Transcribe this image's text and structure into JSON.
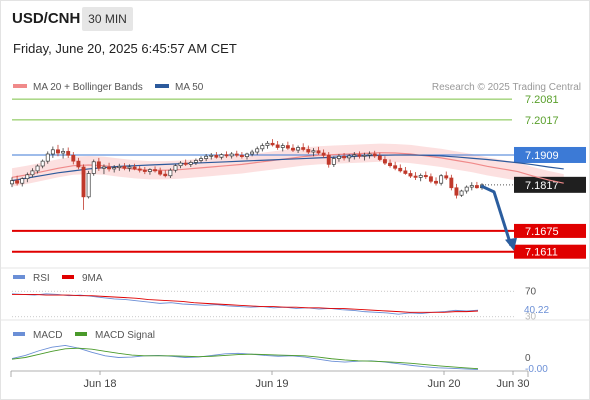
{
  "header": {
    "symbol": "USD/CNH",
    "timeframe": "30 MIN",
    "datetime": "Friday, June 20, 2025 6:45:57 AM CET"
  },
  "colors": {
    "up_candle": "#3a3a3a",
    "down_candle": "#c0392b",
    "ma20": "#f08a8a",
    "bollinger_fill": "#fbdada",
    "ma50": "#2c5a9c",
    "resistance": "#7bc043",
    "support": "#e00000",
    "pivot": "#3c7ad6",
    "current": "#1f1f1f",
    "rsi": "#6b8fd6",
    "rsi_ma": "#e00000",
    "macd": "#6b8fd6",
    "macd_signal": "#4a9a2a",
    "arrow": "#2b5d9e"
  },
  "chart_data": [
    {
      "type": "candlestick",
      "title": "USD/CNH",
      "legend": [
        "MA 20 + Bollinger Bands",
        "MA 50"
      ],
      "legend_position": "top-left",
      "attribution": "Research © 2025 Trading Central",
      "ylim": [
        7.157,
        7.214
      ],
      "x_ticks": [
        "Jun 18",
        "Jun 19",
        "Jun 20",
        "Jun 30"
      ],
      "levels": [
        {
          "value": 7.2081,
          "label": "7.2081",
          "kind": "resistance"
        },
        {
          "value": 7.2017,
          "label": "7.2017",
          "kind": "resistance"
        },
        {
          "value": 7.1909,
          "label": "7.1909",
          "kind": "pivot"
        },
        {
          "value": 7.1817,
          "label": "7.1817",
          "kind": "current"
        },
        {
          "value": 7.1675,
          "label": "7.1675",
          "kind": "support"
        },
        {
          "value": 7.1611,
          "label": "7.1611",
          "kind": "support"
        }
      ],
      "candles": [
        [
          7.182,
          7.184,
          7.181,
          7.183
        ],
        [
          7.183,
          7.1845,
          7.1815,
          7.1822
        ],
        [
          7.1822,
          7.184,
          7.1812,
          7.1836
        ],
        [
          7.1836,
          7.1855,
          7.1825,
          7.1848
        ],
        [
          7.1848,
          7.1868,
          7.184,
          7.186
        ],
        [
          7.186,
          7.188,
          7.1852,
          7.1875
        ],
        [
          7.1875,
          7.1895,
          7.1868,
          7.189
        ],
        [
          7.189,
          7.192,
          7.1882,
          7.1912
        ],
        [
          7.1912,
          7.1935,
          7.19,
          7.1925
        ],
        [
          7.1925,
          7.194,
          7.1905,
          7.1915
        ],
        [
          7.1915,
          7.193,
          7.1898,
          7.192
        ],
        [
          7.192,
          7.1932,
          7.19,
          7.1908
        ],
        [
          7.1908,
          7.1918,
          7.188,
          7.189
        ],
        [
          7.189,
          7.19,
          7.1865,
          7.1872
        ],
        [
          7.1872,
          7.188,
          7.174,
          7.178
        ],
        [
          7.178,
          7.186,
          7.1775,
          7.1852
        ],
        [
          7.1852,
          7.1895,
          7.1845,
          7.1888
        ],
        [
          7.1888,
          7.19,
          7.186,
          7.1868
        ],
        [
          7.1868,
          7.188,
          7.185,
          7.1872
        ],
        [
          7.1872,
          7.1885,
          7.1858,
          7.1866
        ],
        [
          7.1866,
          7.1878,
          7.1855,
          7.187
        ],
        [
          7.187,
          7.1882,
          7.186,
          7.1874
        ],
        [
          7.1874,
          7.1884,
          7.1862,
          7.1868
        ],
        [
          7.1868,
          7.188,
          7.1858,
          7.1872
        ],
        [
          7.1872,
          7.1882,
          7.1862,
          7.1866
        ],
        [
          7.1866,
          7.1875,
          7.1855,
          7.1862
        ],
        [
          7.1862,
          7.1872,
          7.185,
          7.1858
        ],
        [
          7.1858,
          7.1868,
          7.1848,
          7.1864
        ],
        [
          7.1864,
          7.1874,
          7.1855,
          7.186
        ],
        [
          7.186,
          7.187,
          7.1845,
          7.185
        ],
        [
          7.185,
          7.1862,
          7.184,
          7.1845
        ],
        [
          7.1845,
          7.1868,
          7.1838,
          7.1862
        ],
        [
          7.1862,
          7.188,
          7.1855,
          7.1876
        ],
        [
          7.1876,
          7.189,
          7.1868,
          7.1884
        ],
        [
          7.1884,
          7.1895,
          7.1875,
          7.188
        ],
        [
          7.188,
          7.1892,
          7.1872,
          7.1886
        ],
        [
          7.1886,
          7.1898,
          7.1878,
          7.1892
        ],
        [
          7.1892,
          7.1905,
          7.1885,
          7.1898
        ],
        [
          7.1898,
          7.1912,
          7.189,
          7.1905
        ],
        [
          7.1905,
          7.1915,
          7.1895,
          7.1908
        ],
        [
          7.1908,
          7.1918,
          7.1898,
          7.1902
        ],
        [
          7.1902,
          7.1914,
          7.1895,
          7.191
        ],
        [
          7.191,
          7.192,
          7.19,
          7.1906
        ],
        [
          7.1906,
          7.1918,
          7.1898,
          7.1912
        ],
        [
          7.1912,
          7.1922,
          7.1902,
          7.1908
        ],
        [
          7.1908,
          7.1918,
          7.1898,
          7.1904
        ],
        [
          7.1904,
          7.1916,
          7.1895,
          7.1912
        ],
        [
          7.1912,
          7.1925,
          7.1905,
          7.1918
        ],
        [
          7.1918,
          7.1935,
          7.191,
          7.1928
        ],
        [
          7.1928,
          7.1945,
          7.192,
          7.1938
        ],
        [
          7.1938,
          7.1952,
          7.1928,
          7.1945
        ],
        [
          7.1945,
          7.1958,
          7.1935,
          7.194
        ],
        [
          7.194,
          7.1952,
          7.1925,
          7.1932
        ],
        [
          7.1932,
          7.1945,
          7.192,
          7.1938
        ],
        [
          7.1938,
          7.195,
          7.1925,
          7.193
        ],
        [
          7.193,
          7.1942,
          7.1918,
          7.1924
        ],
        [
          7.1924,
          7.1938,
          7.1915,
          7.1932
        ],
        [
          7.1932,
          7.1945,
          7.192,
          7.1926
        ],
        [
          7.1926,
          7.1938,
          7.1912,
          7.1918
        ],
        [
          7.1918,
          7.193,
          7.1905,
          7.1922
        ],
        [
          7.1922,
          7.1934,
          7.191,
          7.1915
        ],
        [
          7.1915,
          7.1926,
          7.19,
          7.1908
        ],
        [
          7.1908,
          7.1918,
          7.187,
          7.188
        ],
        [
          7.188,
          7.1905,
          7.1872,
          7.1898
        ],
        [
          7.1898,
          7.1912,
          7.1888,
          7.1905
        ],
        [
          7.1905,
          7.1915,
          7.1892,
          7.19
        ],
        [
          7.19,
          7.1912,
          7.1888,
          7.1906
        ],
        [
          7.1906,
          7.1918,
          7.1895,
          7.191
        ],
        [
          7.191,
          7.192,
          7.1898,
          7.1905
        ],
        [
          7.1905,
          7.1916,
          7.1892,
          7.1908
        ],
        [
          7.1908,
          7.192,
          7.1898,
          7.1912
        ],
        [
          7.1912,
          7.1922,
          7.19,
          7.1906
        ],
        [
          7.1906,
          7.1916,
          7.189,
          7.1895
        ],
        [
          7.1895,
          7.1905,
          7.1878,
          7.1884
        ],
        [
          7.1884,
          7.1895,
          7.187,
          7.1876
        ],
        [
          7.1876,
          7.1888,
          7.1862,
          7.1868
        ],
        [
          7.1868,
          7.188,
          7.1855,
          7.186
        ],
        [
          7.186,
          7.1872,
          7.1848,
          7.1852
        ],
        [
          7.1852,
          7.1862,
          7.1838,
          7.1844
        ],
        [
          7.1844,
          7.1856,
          7.1832,
          7.184
        ],
        [
          7.184,
          7.1852,
          7.1828,
          7.1846
        ],
        [
          7.1846,
          7.1858,
          7.1835,
          7.1842
        ],
        [
          7.1842,
          7.1852,
          7.1822,
          7.1828
        ],
        [
          7.1828,
          7.184,
          7.1815,
          7.1822
        ],
        [
          7.1822,
          7.185,
          7.1815,
          7.1845
        ],
        [
          7.1845,
          7.1858,
          7.1832,
          7.1838
        ],
        [
          7.1838,
          7.1848,
          7.18,
          7.1808
        ],
        [
          7.1808,
          7.182,
          7.1775,
          7.1785
        ],
        [
          7.1785,
          7.1802,
          7.178,
          7.1798
        ],
        [
          7.1798,
          7.1815,
          7.179,
          7.181
        ],
        [
          7.181,
          7.1825,
          7.18,
          7.1815
        ],
        [
          7.1815,
          7.1826,
          7.1805,
          7.1808
        ],
        [
          7.1808,
          7.1822,
          7.1802,
          7.1817
        ]
      ],
      "ma20": [
        7.184,
        7.1848,
        7.1858,
        7.1868,
        7.1876,
        7.1878,
        7.1876,
        7.187,
        7.1865,
        7.1862,
        7.1862,
        7.1864,
        7.1868,
        7.1872,
        7.1876,
        7.188,
        7.1886,
        7.1892,
        7.1898,
        7.1904,
        7.1908,
        7.191,
        7.1912,
        7.1914,
        7.1916,
        7.1915,
        7.1912,
        7.1906,
        7.19,
        7.1892,
        7.1884,
        7.1874,
        7.1866,
        7.1858,
        7.1844,
        7.1832,
        7.1822
      ],
      "ma20_x": [
        0,
        3,
        6,
        9,
        12,
        15,
        18,
        21,
        24,
        27,
        30,
        33,
        36,
        39,
        42,
        45,
        48,
        51,
        54,
        57,
        60,
        63,
        66,
        69,
        72,
        75,
        78,
        81,
        84,
        87,
        90,
        93,
        96,
        99,
        102,
        105,
        108
      ],
      "ma50": [
        7.183,
        7.1838,
        7.1846,
        7.1854,
        7.186,
        7.1866,
        7.187,
        7.1874,
        7.1876,
        7.1878,
        7.188,
        7.1882,
        7.1884,
        7.1886,
        7.1888,
        7.189,
        7.1892,
        7.1894,
        7.1896,
        7.1898,
        7.19,
        7.1902,
        7.1904,
        7.1906,
        7.1908,
        7.1909,
        7.1909,
        7.1908,
        7.1906,
        7.1903,
        7.1899,
        7.1895,
        7.189,
        7.1885,
        7.1879,
        7.1872,
        7.1866
      ],
      "forecast_arrow": {
        "from": 7.1817,
        "to": 7.1611
      }
    },
    {
      "type": "line",
      "title": "RSI",
      "legend": [
        "RSI",
        "9MA"
      ],
      "legend_position": "top-left",
      "ylim": [
        28,
        72
      ],
      "tick_labels": [
        "70",
        "40.22",
        "30"
      ],
      "series": [
        {
          "name": "RSI",
          "values": [
            66,
            65,
            64,
            66,
            65,
            63,
            64,
            62,
            60,
            58,
            57,
            55,
            53,
            51,
            52,
            50,
            49,
            48,
            49,
            47,
            46,
            45,
            46,
            44,
            45,
            43,
            44,
            42,
            43,
            41,
            40,
            38,
            37,
            36,
            34,
            36,
            35,
            37,
            38,
            40,
            39,
            40.22
          ]
        },
        {
          "name": "9MA",
          "values": [
            65,
            65,
            65,
            64,
            64,
            64,
            63,
            63,
            62,
            61,
            60,
            59,
            57,
            56,
            55,
            54,
            52,
            51,
            50,
            49,
            48,
            47,
            46,
            46,
            45,
            45,
            44,
            44,
            43,
            43,
            42,
            41,
            40,
            39,
            38,
            37,
            37,
            37,
            37,
            38,
            38,
            39
          ]
        }
      ]
    },
    {
      "type": "line",
      "title": "MACD",
      "legend": [
        "MACD",
        "MACD Signal"
      ],
      "legend_position": "top-left",
      "ylim": [
        -0.006,
        0.008
      ],
      "tick_labels": [
        "0",
        "-0.00"
      ],
      "series": [
        {
          "name": "MACD",
          "values": [
            0.0005,
            0.002,
            0.0042,
            0.006,
            0.0068,
            0.0055,
            0.0035,
            0.0018,
            0.001,
            0.0012,
            0.0018,
            0.002,
            0.0016,
            0.001,
            0.0012,
            0.002,
            0.0028,
            0.003,
            0.0026,
            0.002,
            0.0016,
            0.0018,
            0.0012,
            0.0002,
            -0.0008,
            -0.0012,
            -0.0008,
            -0.0006,
            -0.0012,
            -0.002,
            -0.0028,
            -0.0035,
            -0.004,
            -0.0042,
            -0.0045,
            -0.0048
          ]
        },
        {
          "name": "MACD Signal",
          "values": [
            0.0002,
            0.001,
            0.0025,
            0.004,
            0.0052,
            0.0055,
            0.005,
            0.004,
            0.003,
            0.0022,
            0.0018,
            0.0018,
            0.0018,
            0.0016,
            0.0014,
            0.0016,
            0.002,
            0.0024,
            0.0026,
            0.0024,
            0.0022,
            0.002,
            0.0018,
            0.0012,
            0.0004,
            -0.0002,
            -0.0006,
            -0.0008,
            -0.001,
            -0.0014,
            -0.0018,
            -0.0024,
            -0.003,
            -0.0035,
            -0.004,
            -0.0044
          ]
        }
      ]
    }
  ]
}
